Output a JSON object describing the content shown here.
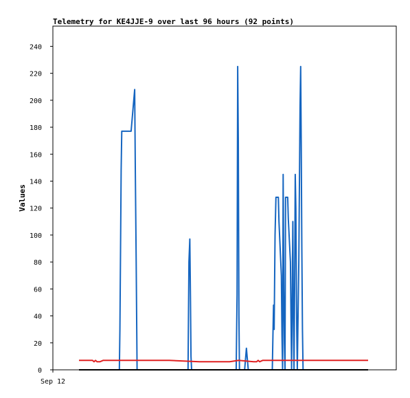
{
  "chart_data": {
    "type": "line",
    "title": "Telemetry for KE4JJE-9 over last 96 hours (92 points)",
    "xlabel": "",
    "ylabel": "Values",
    "x_tick_labels": [
      "Sep 12"
    ],
    "y_ticks": [
      0,
      20,
      40,
      60,
      80,
      100,
      120,
      140,
      160,
      180,
      200,
      220,
      240
    ],
    "ylim": [
      0,
      255
    ],
    "xlim": [
      0,
      96
    ],
    "grid": false,
    "legend": "none",
    "series": [
      {
        "color": "#1565c0",
        "x": [
          0,
          13.4,
          13.6,
          13.8,
          14.0,
          14.2,
          14.4,
          17.3,
          18.5,
          18.7,
          19.0,
          19.2,
          19.3,
          19.5,
          36.2,
          36.5,
          36.8,
          37.0,
          37.2,
          37.4,
          52.2,
          52.5,
          52.7,
          52.9,
          53.1,
          53.3,
          55.0,
          55.6,
          56.2,
          64.2,
          64.4,
          64.6,
          64.8,
          65.1,
          65.4,
          65.6,
          66.2,
          66.4,
          67.2,
          67.4,
          67.6,
          67.8,
          68.0,
          68.2,
          68.4,
          68.6,
          68.8,
          69.0,
          69.3,
          69.5,
          70.2,
          70.4,
          70.6,
          71.0,
          71.2,
          71.4,
          71.6,
          71.8,
          72.0,
          72.3,
          72.5,
          73.0,
          73.4,
          73.6,
          73.8,
          74.0,
          74.2,
          74.4,
          74.6,
          75.0,
          75.2,
          75.4,
          75.6,
          76.0,
          96
        ],
        "y": [
          0,
          0,
          30,
          88,
          148,
          177,
          177,
          177,
          208,
          150,
          80,
          25,
          0,
          0,
          0,
          80,
          97,
          55,
          10,
          0,
          0,
          56,
          225,
          170,
          40,
          0,
          0,
          16,
          0,
          0,
          25,
          48,
          30,
          100,
          128,
          128,
          128,
          110,
          70,
          25,
          0,
          145,
          60,
          20,
          0,
          128,
          128,
          128,
          128,
          112,
          80,
          40,
          0,
          110,
          40,
          0,
          60,
          145,
          120,
          30,
          0,
          80,
          195,
          225,
          170,
          90,
          30,
          0,
          0,
          0,
          0,
          0,
          0,
          0,
          0
        ]
      },
      {
        "color": "#e02020",
        "x": [
          0,
          4.5,
          5.0,
          5.5,
          6.0,
          7.0,
          8.0,
          9.0,
          10.0,
          30.0,
          40.0,
          50.0,
          53.0,
          58.0,
          59.0,
          59.5,
          60.0,
          61.0,
          96
        ],
        "y": [
          7,
          7,
          6,
          7,
          6,
          6,
          7,
          7,
          7,
          7,
          6,
          6,
          7,
          6,
          6,
          7,
          6,
          7,
          7
        ]
      },
      {
        "color": "#000000",
        "x": [
          0,
          96
        ],
        "y": [
          0,
          0
        ]
      }
    ]
  }
}
